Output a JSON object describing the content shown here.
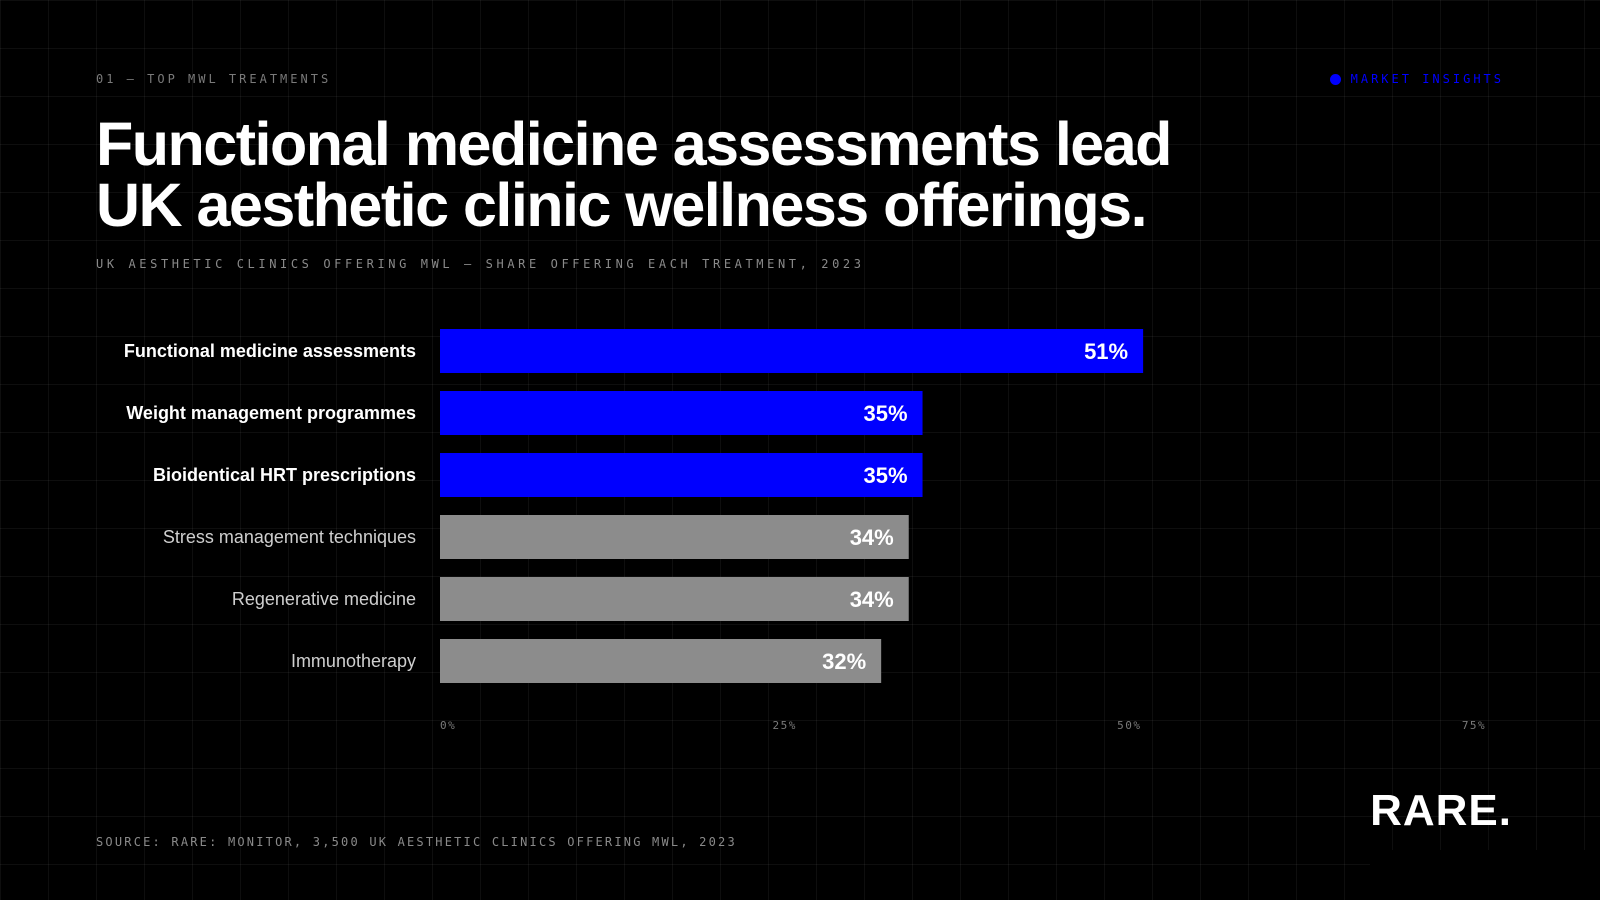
{
  "header": {
    "eyebrow": "01 — TOP MWL TREATMENTS",
    "tag": "MARKET INSIGHTS",
    "title_line1": "Functional medicine assessments lead",
    "title_line2": "UK aesthetic clinic wellness offerings.",
    "subtitle": "UK AESTHETIC CLINICS OFFERING MWL — SHARE OFFERING EACH TREATMENT, 2023"
  },
  "footer": {
    "source": "SOURCE: RARE: MONITOR, 3,500 UK AESTHETIC CLINICS OFFERING MWL, 2023",
    "logo": "RARE."
  },
  "colors": {
    "highlight": "#0000ff",
    "muted": "#8c8c8c",
    "background": "#000000",
    "label_highlight": "#ffffff",
    "label_muted": "#cfcfcf",
    "tick": "#7a7a7a"
  },
  "chart_data": {
    "type": "bar",
    "orientation": "horizontal",
    "categories": [
      "Functional medicine assessments",
      "Weight management programmes",
      "Bioidentical HRT prescriptions",
      "Stress management techniques",
      "Regenerative medicine",
      "Immunotherapy"
    ],
    "values": [
      51,
      35,
      35,
      34,
      34,
      32
    ],
    "value_labels": [
      "51%",
      "35%",
      "35%",
      "34%",
      "34%",
      "32%"
    ],
    "highlighted": [
      true,
      true,
      true,
      false,
      false,
      false
    ],
    "xlim": [
      0,
      75
    ],
    "xticks": [
      0,
      25,
      50,
      75
    ],
    "xtick_labels": [
      "0%",
      "25%",
      "50%",
      "75%"
    ],
    "grid": true,
    "legend": "none"
  }
}
